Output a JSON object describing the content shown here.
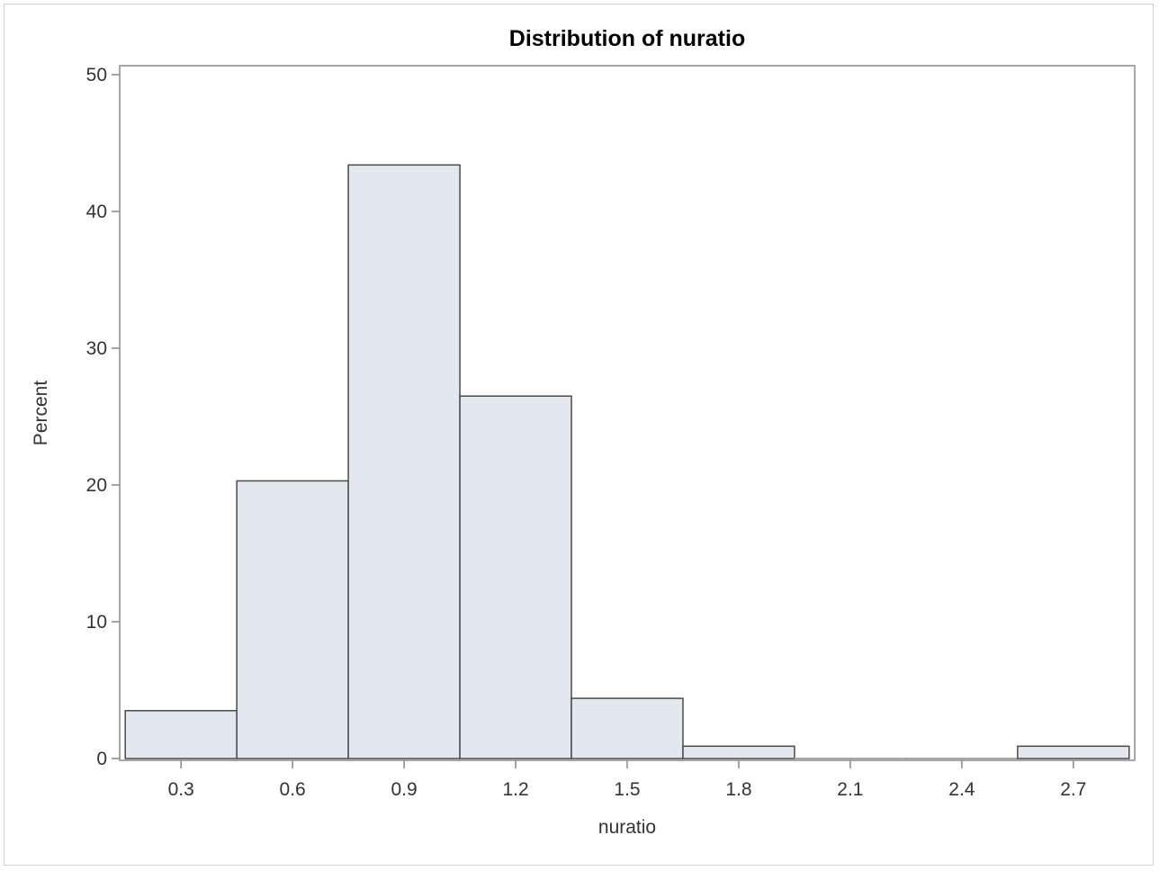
{
  "chart_data": {
    "type": "bar",
    "title": "Distribution of nuratio",
    "xlabel": "nuratio",
    "ylabel": "Percent",
    "ylim": [
      0,
      50
    ],
    "xlim": [
      0.135,
      2.865
    ],
    "bin_width": 0.3,
    "categories": [
      "0.3",
      "0.6",
      "0.9",
      "1.2",
      "1.5",
      "1.8",
      "2.1",
      "2.4",
      "2.7"
    ],
    "bin_centers": [
      0.3,
      0.6,
      0.9,
      1.2,
      1.5,
      1.8,
      2.1,
      2.4,
      2.7
    ],
    "values": [
      3.5,
      20.3,
      43.4,
      26.5,
      4.4,
      0.9,
      0,
      0,
      0.9
    ],
    "y_ticks": [
      0,
      10,
      20,
      30,
      40,
      50
    ],
    "grid": false,
    "colors": {
      "bar_fill": "#e3e8f0",
      "bar_stroke": "#4a4a4a",
      "axis": "#888888"
    }
  }
}
